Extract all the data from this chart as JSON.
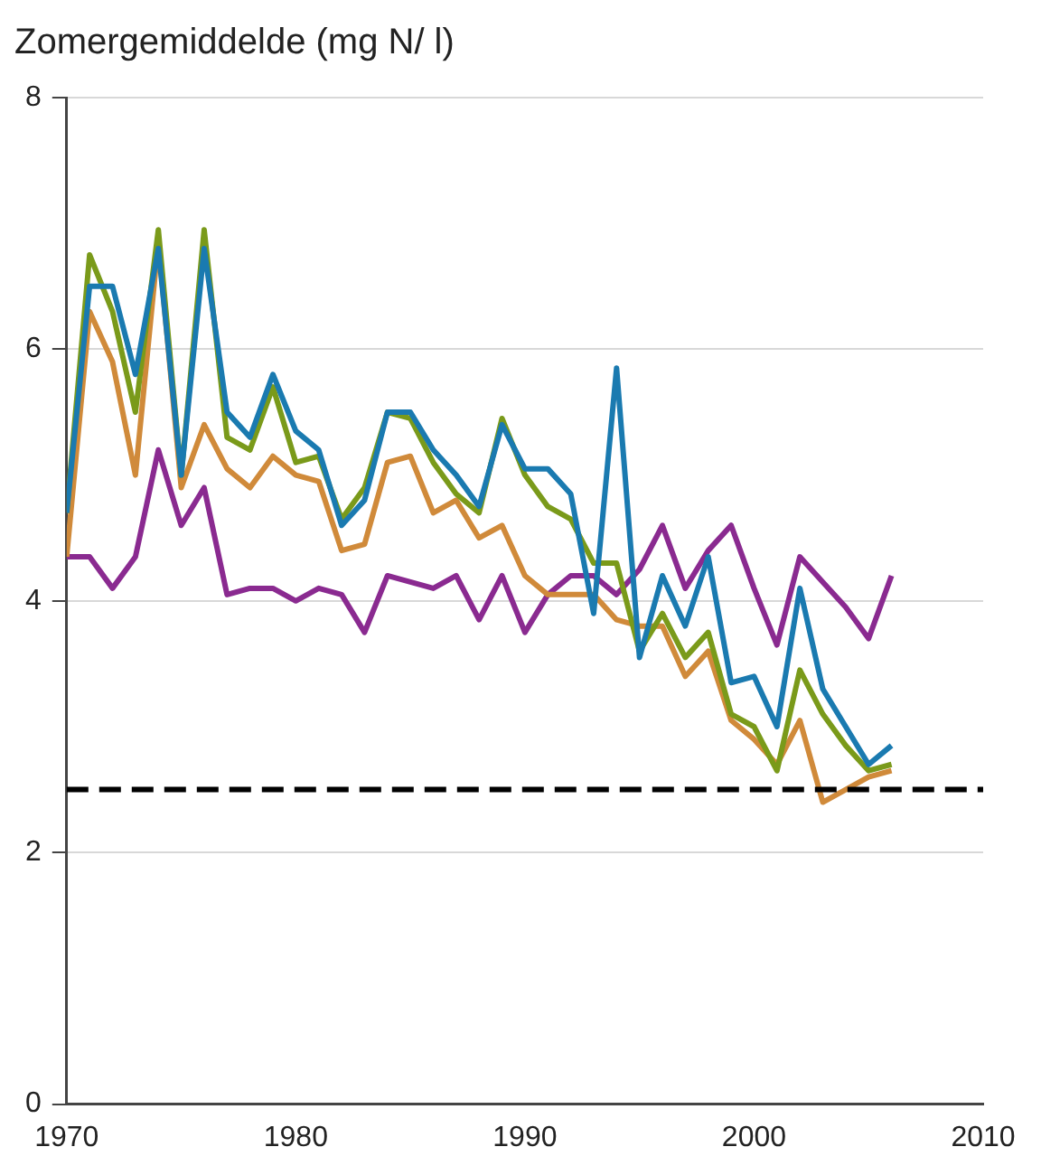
{
  "chart_data": {
    "type": "line",
    "title": "Zomergemiddelde (mg N/ l)",
    "x": [
      1970,
      1971,
      1972,
      1973,
      1974,
      1975,
      1976,
      1977,
      1978,
      1979,
      1980,
      1981,
      1982,
      1983,
      1984,
      1985,
      1986,
      1987,
      1988,
      1989,
      1990,
      1991,
      1992,
      1993,
      1994,
      1995,
      1996,
      1997,
      1998,
      1999,
      2000,
      2001,
      2002,
      2003,
      2004,
      2005,
      2006
    ],
    "series": [
      {
        "color": "#1a7ab0",
        "values": [
          4.7,
          6.5,
          6.5,
          5.8,
          6.8,
          5.0,
          6.8,
          5.5,
          5.3,
          5.8,
          5.35,
          5.2,
          4.6,
          4.8,
          5.5,
          5.5,
          5.2,
          5.0,
          4.75,
          5.4,
          5.05,
          5.05,
          4.85,
          3.9,
          5.85,
          3.55,
          4.2,
          3.8,
          4.35,
          3.35,
          3.4,
          3.0,
          4.1,
          3.3,
          3.0,
          2.7,
          2.85
        ]
      },
      {
        "color": "#7a9a1a",
        "values": [
          4.7,
          6.75,
          6.3,
          5.5,
          6.95,
          5.0,
          6.95,
          5.3,
          5.2,
          5.7,
          5.1,
          5.15,
          4.65,
          4.9,
          5.5,
          5.45,
          5.1,
          4.85,
          4.7,
          5.45,
          5.0,
          4.75,
          4.65,
          4.3,
          4.3,
          3.6,
          3.9,
          3.55,
          3.75,
          3.1,
          3.0,
          2.65,
          3.45,
          3.1,
          2.85,
          2.65,
          2.7
        ]
      },
      {
        "color": "#d08a3a",
        "values": [
          4.35,
          6.3,
          5.9,
          5.0,
          6.85,
          4.9,
          5.4,
          5.05,
          4.9,
          5.15,
          5.0,
          4.95,
          4.4,
          4.45,
          5.1,
          5.15,
          4.7,
          4.8,
          4.5,
          4.6,
          4.2,
          4.05,
          4.05,
          4.05,
          3.85,
          3.8,
          3.8,
          3.4,
          3.6,
          3.05,
          2.9,
          2.7,
          3.05,
          2.4,
          2.5,
          2.6,
          2.65
        ]
      },
      {
        "color": "#8a2a90",
        "values": [
          4.35,
          4.35,
          4.1,
          4.35,
          5.2,
          4.6,
          4.9,
          4.05,
          4.1,
          4.1,
          4.0,
          4.1,
          4.05,
          3.75,
          4.2,
          4.15,
          4.1,
          4.2,
          3.85,
          4.2,
          3.75,
          4.05,
          4.2,
          4.2,
          4.05,
          4.25,
          4.6,
          4.1,
          4.4,
          4.6,
          4.1,
          3.65,
          4.35,
          4.15,
          3.95,
          3.7,
          4.2
        ]
      }
    ],
    "xlim": [
      1970,
      2010
    ],
    "xticks": [
      1970,
      1980,
      1990,
      2000,
      2010
    ],
    "ylim": [
      0,
      8
    ],
    "yticks": [
      0,
      2,
      4,
      6,
      8
    ],
    "grid": "y",
    "legend": false,
    "marker": "none",
    "line_style": "solid",
    "ref_lines": [
      {
        "axis": "y",
        "value": 2.5,
        "color": "#000000",
        "line_style": "dashed"
      }
    ]
  }
}
